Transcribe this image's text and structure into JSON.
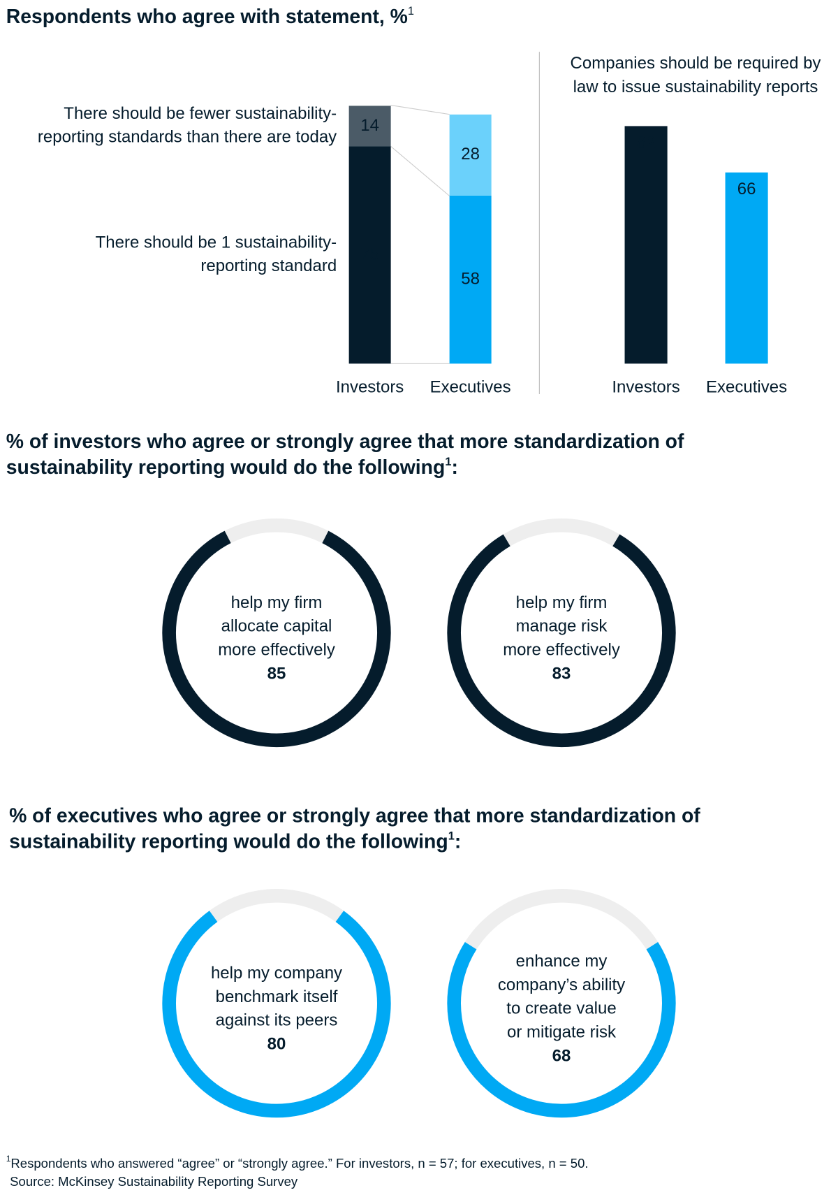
{
  "title": "Respondents who agree with statement, %",
  "title_note": "1",
  "chart_data": [
    {
      "type": "stacked-bar",
      "categories": [
        "Investors",
        "Executives"
      ],
      "series": [
        {
          "name": [
            "There should be 1 sustainability-",
            "reporting standard"
          ],
          "colors": [
            "#051c2c",
            "#00a9f4"
          ],
          "values": [
            75,
            58
          ]
        },
        {
          "name": [
            "There should be fewer sustainability-",
            "reporting standards than there are today"
          ],
          "colors": [
            "#4b5b67",
            "#6bd1fb"
          ],
          "values": [
            14,
            28
          ]
        }
      ]
    },
    {
      "type": "bar",
      "title": [
        "Companies should be required by",
        "law to issue sustainability reports"
      ],
      "categories": [
        "Investors",
        "Executives"
      ],
      "colors": [
        "#051c2c",
        "#00a9f4"
      ],
      "values": [
        82,
        66
      ]
    },
    {
      "type": "donut",
      "title": [
        "% of investors who agree or strongly agree that more standardization of",
        "sustainability reporting would do the following"
      ],
      "title_note": "1",
      "title_end": ":",
      "color": "#051c2c",
      "categories": [
        [
          "help my firm",
          "allocate capital",
          "more effectively"
        ],
        [
          "help my firm",
          "manage risk",
          "more effectively"
        ]
      ],
      "values": [
        85,
        83
      ]
    },
    {
      "type": "donut",
      "title": [
        "% of executives who agree or strongly agree that more standardization of",
        "sustainability reporting would do the following"
      ],
      "title_note": "1",
      "title_end": ":",
      "color": "#00a9f4",
      "categories": [
        [
          "help my company",
          "benchmark itself",
          "against its peers"
        ],
        [
          "enhance my",
          "company’s ability",
          "to create value",
          "or mitigate risk"
        ]
      ],
      "values": [
        80,
        68
      ]
    }
  ],
  "footnote_marker": "1",
  "footnote": "Respondents who answered “agree” or “strongly agree.” For investors, n = 57; for executives, n = 50.",
  "source": "Source: McKinsey Sustainability Reporting Survey"
}
